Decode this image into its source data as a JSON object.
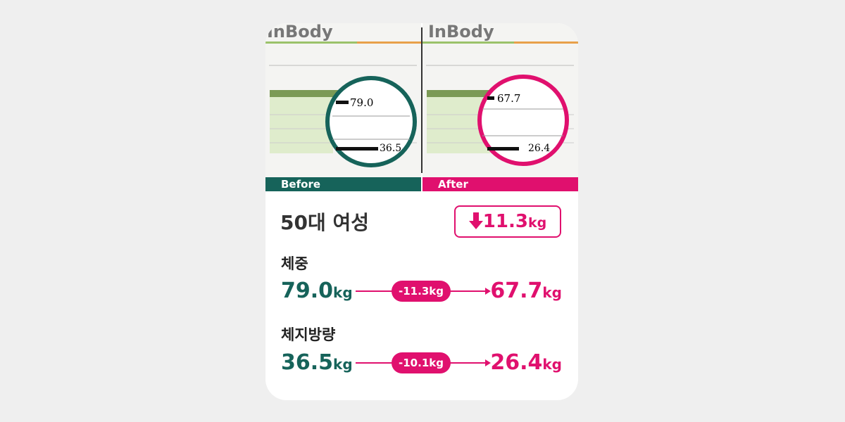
{
  "images": {
    "before": {
      "logo": "InBody",
      "label": "Before",
      "reading_weight": "79.0",
      "reading_fat": "36.5"
    },
    "after": {
      "logo": "InBody",
      "label": "After",
      "reading_weight": "67.7",
      "reading_fat": "26.4"
    }
  },
  "summary": {
    "group": "50대 여성",
    "total_change": "11.3",
    "total_unit": "kg"
  },
  "metrics": [
    {
      "name": "체중",
      "before": "79.0",
      "before_unit": "kg",
      "change": "-11.3kg",
      "after": "67.7",
      "after_unit": "kg"
    },
    {
      "name": "체지방량",
      "before": "36.5",
      "before_unit": "kg",
      "change": "-10.1kg",
      "after": "26.4",
      "after_unit": "kg"
    }
  ]
}
